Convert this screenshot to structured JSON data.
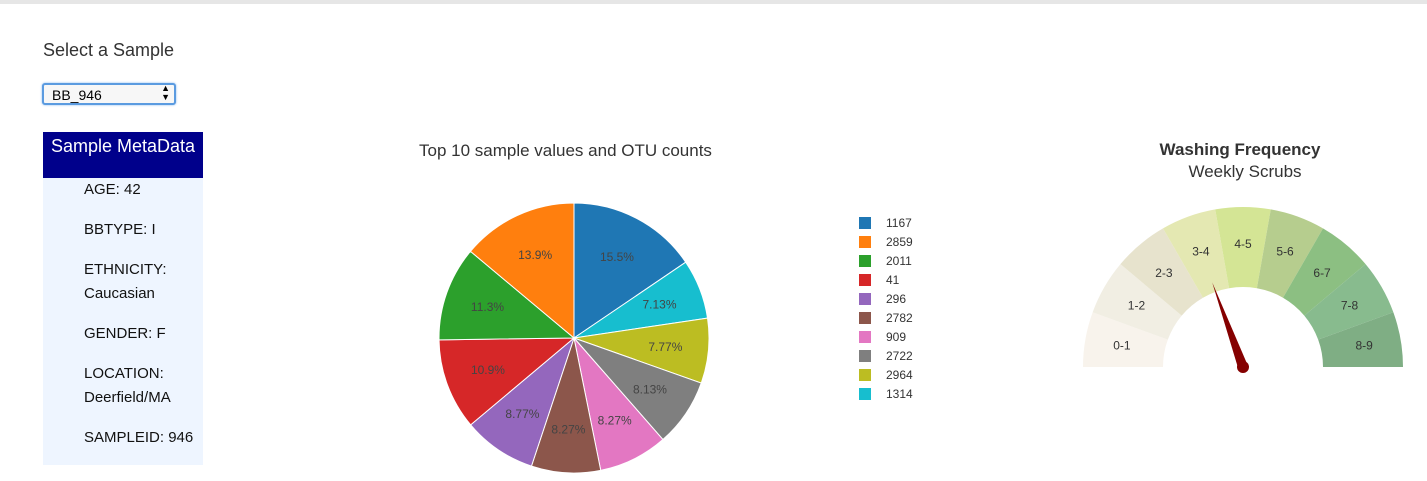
{
  "selector": {
    "label": "Select a Sample",
    "selected": "BB_946"
  },
  "metadata": {
    "header": "Sample MetaData",
    "items": [
      {
        "line1": "AGE: 42",
        "line2": ""
      },
      {
        "line1": "BBTYPE: I",
        "line2": ""
      },
      {
        "line1": "ETHNICITY:",
        "line2": "Caucasian"
      },
      {
        "line1": "GENDER: F",
        "line2": ""
      },
      {
        "line1": "LOCATION:",
        "line2": "Deerfield/MA"
      },
      {
        "line1": "SAMPLEID: 946",
        "line2": ""
      }
    ]
  },
  "chart_data": [
    {
      "type": "pie",
      "title": "Top 10 sample values and OTU counts",
      "slices": [
        {
          "label": "1167",
          "percent": 15.5,
          "text": "15.5%",
          "color": "#1f77b4"
        },
        {
          "label": "2859",
          "percent": 13.9,
          "text": "13.9%",
          "color": "#ff7f0e"
        },
        {
          "label": "2011",
          "percent": 11.3,
          "text": "11.3%",
          "color": "#2ca02c"
        },
        {
          "label": "41",
          "percent": 10.9,
          "text": "10.9%",
          "color": "#d62728"
        },
        {
          "label": "296",
          "percent": 8.77,
          "text": "8.77%",
          "color": "#9467bd"
        },
        {
          "label": "2782",
          "percent": 8.27,
          "text": "8.27%",
          "color": "#8c564b"
        },
        {
          "label": "909",
          "percent": 8.27,
          "text": "8.27%",
          "color": "#e377c2"
        },
        {
          "label": "2722",
          "percent": 8.13,
          "text": "8.13%",
          "color": "#7f7f7f"
        },
        {
          "label": "2964",
          "percent": 7.77,
          "text": "7.77%",
          "color": "#bcbd22"
        },
        {
          "label": "1314",
          "percent": 7.13,
          "text": "7.13%",
          "color": "#17becf"
        }
      ],
      "legend_position": "right"
    },
    {
      "type": "gauge",
      "title": "Washing Frequency",
      "subtitle": "Weekly Scrubs",
      "segments": [
        {
          "label": "0-1",
          "color": "#f8f3ec"
        },
        {
          "label": "1-2",
          "color": "#f1eee3"
        },
        {
          "label": "2-3",
          "color": "#e7e3cd"
        },
        {
          "label": "3-4",
          "color": "#e4e8b2"
        },
        {
          "label": "4-5",
          "color": "#d4e595"
        },
        {
          "label": "5-6",
          "color": "#b6cd8e"
        },
        {
          "label": "6-7",
          "color": "#8cbf82"
        },
        {
          "label": "7-8",
          "color": "#88bb8e"
        },
        {
          "label": "8-9",
          "color": "#7fae84"
        }
      ],
      "range": [
        0,
        9
      ],
      "value": 3.5,
      "needle_color": "#850000"
    }
  ]
}
